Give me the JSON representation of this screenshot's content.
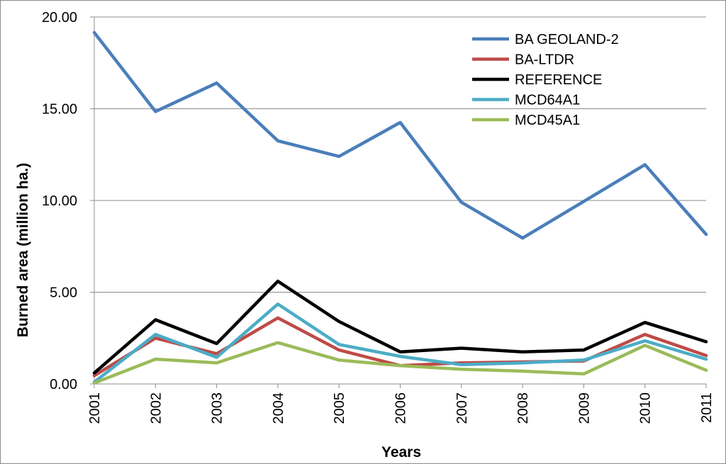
{
  "chart_data": {
    "type": "line",
    "title": "",
    "xlabel": "Years",
    "ylabel": "Burned area (million ha.)",
    "ylim": [
      0,
      20
    ],
    "yticks": [
      "0.00",
      "5.00",
      "10.00",
      "15.00",
      "20.00"
    ],
    "ytick_values": [
      0,
      5,
      10,
      15,
      20
    ],
    "grid": true,
    "legend_position": "top-right",
    "categories": [
      "2001",
      "2002",
      "2003",
      "2004",
      "2005",
      "2006",
      "2007",
      "2008",
      "2009",
      "2010",
      "2011"
    ],
    "series": [
      {
        "name": "BA GEOLAND-2",
        "color": "#4a7ebb",
        "values": [
          19.15,
          14.85,
          16.4,
          13.25,
          12.4,
          14.25,
          9.9,
          7.95,
          9.95,
          11.95,
          8.15
        ]
      },
      {
        "name": "BA-LTDR",
        "color": "#be4b48",
        "values": [
          0.45,
          2.5,
          1.65,
          3.6,
          1.85,
          1.0,
          1.15,
          1.2,
          1.25,
          2.7,
          1.55
        ]
      },
      {
        "name": "REFERENCE",
        "color": "#000000",
        "values": [
          0.6,
          3.5,
          2.2,
          5.6,
          3.4,
          1.75,
          1.95,
          1.75,
          1.85,
          3.35,
          2.3
        ]
      },
      {
        "name": "MCD64A1",
        "color": "#4bacc6",
        "values": [
          0.1,
          2.7,
          1.45,
          4.35,
          2.15,
          1.5,
          1.05,
          1.15,
          1.3,
          2.35,
          1.35
        ]
      },
      {
        "name": "MCD45A1",
        "color": "#9bbb59",
        "values": [
          0.05,
          1.35,
          1.15,
          2.25,
          1.3,
          1.0,
          0.8,
          0.7,
          0.55,
          2.1,
          0.75
        ]
      }
    ]
  }
}
